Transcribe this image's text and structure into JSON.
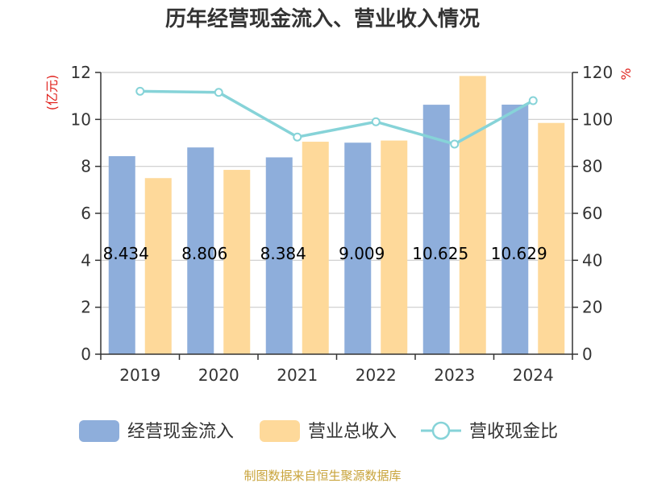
{
  "chart_data": {
    "type": "bar",
    "title": "历年经营现金流入、营业收入情况",
    "categories": [
      "2019",
      "2020",
      "2021",
      "2022",
      "2023",
      "2024"
    ],
    "left_axis": {
      "unit": "(亿元)",
      "ylim": [
        0,
        12
      ],
      "ticks": [
        0,
        2,
        4,
        6,
        8,
        10,
        12
      ]
    },
    "right_axis": {
      "unit": "%",
      "ylim": [
        0,
        120
      ],
      "ticks": [
        0,
        20,
        40,
        60,
        80,
        100,
        120
      ]
    },
    "series": [
      {
        "name": "经营现金流入",
        "type": "bar",
        "axis": "left",
        "color": "#8eaedb",
        "values": [
          8.434,
          8.806,
          8.384,
          9.009,
          10.625,
          10.629
        ],
        "labels": [
          "8.434",
          "8.806",
          "8.384",
          "9.009",
          "10.625",
          "10.629"
        ]
      },
      {
        "name": "营业总收入",
        "type": "bar",
        "axis": "left",
        "color": "#fed99a",
        "values": [
          7.5,
          7.85,
          9.05,
          9.1,
          11.85,
          9.85
        ]
      },
      {
        "name": "营收现金比",
        "type": "line",
        "axis": "right",
        "color": "#86d3d8",
        "values": [
          112,
          111.5,
          92.5,
          99,
          89.5,
          108
        ]
      }
    ],
    "legend_position": "bottom",
    "grid": "horizontal",
    "source": "制图数据来自恒生聚源数据库"
  }
}
